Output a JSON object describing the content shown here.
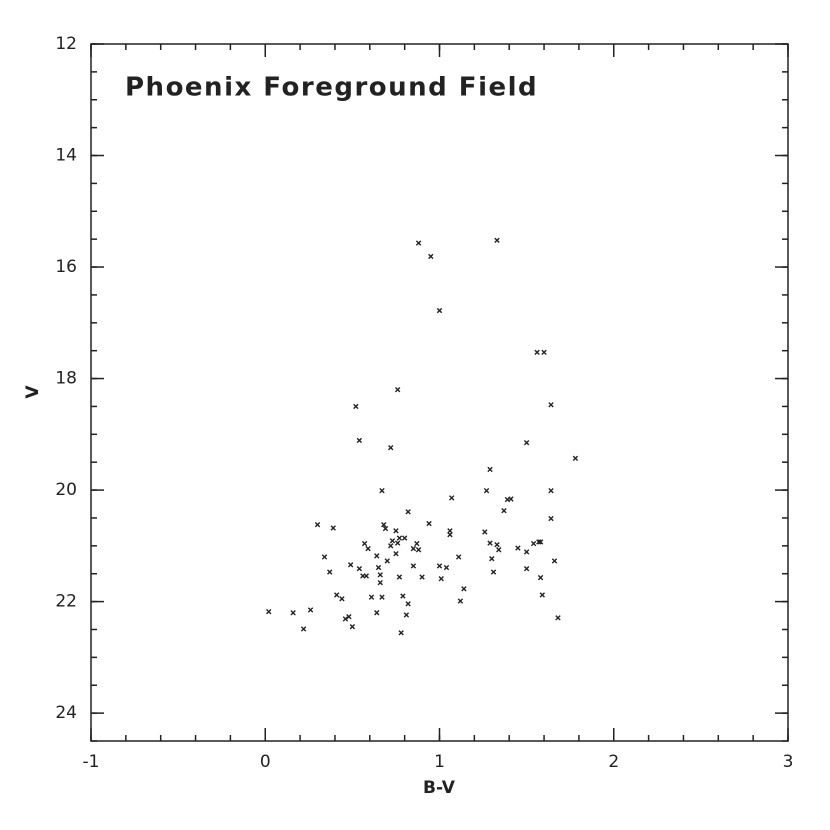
{
  "chart_data": {
    "type": "scatter",
    "title": "Phoenix Foreground Field",
    "x_label": "B-V",
    "y_label": "V",
    "xlim": [
      -1,
      3
    ],
    "ylim": [
      24.5,
      12
    ],
    "xticks": [
      -1,
      0,
      1,
      2,
      3
    ],
    "yticks": [
      12,
      14,
      16,
      18,
      20,
      22,
      24
    ],
    "color": "#222222",
    "x": [
      0.02,
      0.16,
      0.22,
      0.26,
      0.3,
      0.34,
      0.37,
      0.39,
      0.41,
      0.44,
      0.46,
      0.48,
      0.49,
      0.5,
      0.52,
      0.54,
      0.54,
      0.56,
      0.57,
      0.59,
      0.58,
      0.61,
      0.64,
      0.64,
      0.65,
      0.66,
      0.66,
      0.67,
      0.67,
      0.68,
      0.69,
      0.7,
      0.72,
      0.72,
      0.73,
      0.75,
      0.75,
      0.76,
      0.76,
      0.77,
      0.77,
      0.78,
      0.79,
      0.8,
      0.81,
      0.82,
      0.82,
      0.85,
      0.85,
      0.87,
      0.88,
      0.88,
      0.9,
      0.94,
      0.95,
      1.0,
      1.0,
      1.01,
      1.04,
      1.06,
      1.06,
      1.07,
      1.11,
      1.12,
      1.14,
      1.26,
      1.27,
      1.29,
      1.29,
      1.3,
      1.31,
      1.33,
      1.33,
      1.34,
      1.37,
      1.39,
      1.41,
      1.45,
      1.5,
      1.5,
      1.5,
      1.54,
      1.56,
      1.57,
      1.58,
      1.58,
      1.59,
      1.6,
      1.64,
      1.64,
      1.64,
      1.66,
      1.68,
      1.78
    ],
    "values": [
      22.18,
      22.2,
      22.49,
      22.15,
      20.62,
      21.2,
      21.47,
      20.68,
      21.88,
      21.95,
      22.31,
      22.27,
      21.34,
      22.45,
      18.5,
      19.11,
      21.41,
      21.54,
      20.96,
      21.05,
      21.54,
      21.92,
      22.2,
      21.18,
      21.39,
      21.52,
      21.66,
      21.92,
      20.01,
      20.62,
      20.69,
      21.27,
      21.0,
      19.24,
      20.91,
      21.14,
      20.73,
      20.95,
      18.2,
      20.86,
      21.56,
      22.56,
      21.9,
      20.86,
      22.24,
      22.04,
      20.39,
      21.05,
      21.36,
      20.96,
      21.07,
      15.57,
      21.56,
      20.6,
      15.81,
      21.36,
      16.78,
      21.59,
      21.39,
      20.73,
      20.8,
      20.14,
      21.2,
      21.99,
      21.77,
      20.75,
      20.01,
      20.95,
      19.63,
      21.23,
      21.47,
      15.52,
      20.98,
      21.07,
      20.37,
      20.17,
      20.16,
      21.04,
      21.11,
      21.41,
      19.15,
      20.96,
      17.53,
      20.93,
      21.57,
      20.93,
      21.88,
      17.53,
      20.01,
      20.51,
      18.47,
      21.27,
      22.29,
      19.43
    ]
  }
}
